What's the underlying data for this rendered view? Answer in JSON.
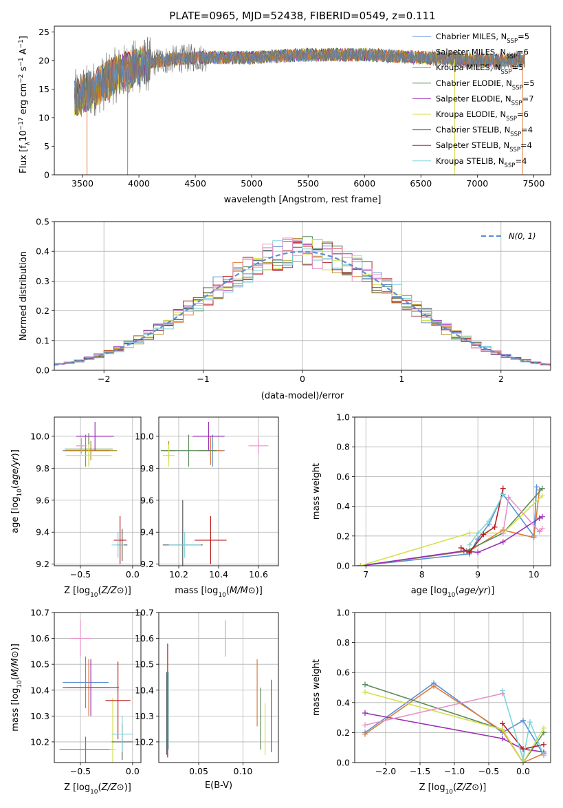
{
  "title": "PLATE=0965, MJD=52438, FIBERID=0549, z=0.111",
  "legend": [
    {
      "name": "Chabrier MILES, N",
      "n": "5",
      "color": "#5a8fd4"
    },
    {
      "name": "Salpeter MILES, N",
      "n": "6",
      "color": "#e07b39"
    },
    {
      "name": "Kroupa MILES, N",
      "n": "5",
      "color": "#b08b20"
    },
    {
      "name": "Chabrier ELODIE, N",
      "n": "5",
      "color": "#5a8a5a"
    },
    {
      "name": "Salpeter ELODIE, N",
      "n": "7",
      "color": "#9b30b5"
    },
    {
      "name": "Kroupa ELODIE, N",
      "n": "6",
      "color": "#d4e04a"
    },
    {
      "name": "Chabrier STELIB, N",
      "n": "4",
      "color": "#555555"
    },
    {
      "name": "Salpeter STELIB, N",
      "n": "4",
      "color": "#b81e1e"
    },
    {
      "name": "Kroupa STELIB, N",
      "n": "4",
      "color": "#7fd4dc"
    }
  ],
  "legend_sub": "SSP",
  "gauss_label": "N(0, 1)",
  "axes": {
    "p1": {
      "xlabel": "wavelength [Angstrom, rest frame]",
      "ylabel_pre": "Flux [f",
      "ylabel_sub": "λ",
      "ylabel_post": "10",
      "ylabel_exp": "−17",
      "ylabel_tail": " erg cm",
      "ylabel_exp2": "−2",
      "ylabel_s": " s",
      "ylabel_exp3": "−1",
      "ylabel_A": " A",
      "ylabel_exp4": "−1",
      "ylabel_end": "]"
    },
    "p2": {
      "xlabel": "(data-model)/error",
      "ylabel": "Normed distribution"
    },
    "p3": {
      "xlabel": "Z [log10(Z/Z⊙)]",
      "ylabel": "age  [log10(age/yr)]"
    },
    "p4": {
      "xlabel": "mass [log10(M/M⊙)]"
    },
    "p5": {
      "xlabel": "age  [log10(age/yr)]",
      "ylabel": "mass weight"
    },
    "p6": {
      "xlabel": "Z [log10(Z/Z⊙)]",
      "ylabel": "mass [log10(M/M⊙)]"
    },
    "p7": {
      "xlabel": "E(B-V)"
    },
    "p8": {
      "xlabel": "Z [log10(Z/Z⊙)]",
      "ylabel": "mass weight"
    }
  },
  "chart_data": [
    {
      "type": "line",
      "id": "spectrum",
      "xlim": [
        3250,
        7650
      ],
      "ylim": [
        0,
        26
      ],
      "xticks": [
        3500,
        4000,
        4500,
        5000,
        5500,
        6000,
        6500,
        7000,
        7500
      ],
      "yticks": [
        0,
        5,
        10,
        15,
        20,
        25
      ],
      "x_start": 3430,
      "x_end": 7420,
      "continuum": [
        [
          3430,
          13.5
        ],
        [
          3600,
          15
        ],
        [
          3800,
          17.5
        ],
        [
          4000,
          19
        ],
        [
          4200,
          20
        ],
        [
          4500,
          20.5
        ],
        [
          5000,
          20.5
        ],
        [
          5500,
          21
        ],
        [
          6000,
          21
        ],
        [
          6500,
          20.5
        ],
        [
          7000,
          20
        ],
        [
          7400,
          20
        ]
      ]
    },
    {
      "type": "line",
      "id": "residuals",
      "xlim": [
        -2.5,
        2.5
      ],
      "ylim": [
        0,
        0.5
      ],
      "xticks": [
        -2,
        -1,
        0,
        1,
        2
      ],
      "yticks": [
        0.0,
        0.1,
        0.2,
        0.3,
        0.4,
        0.5
      ]
    },
    {
      "type": "scatter",
      "id": "age_vs_Z",
      "xlim": [
        -0.75,
        0.08
      ],
      "ylim": [
        9.19,
        10.12
      ],
      "xticks": [
        -0.5,
        0.0
      ],
      "yticks": [
        9.2,
        9.4,
        9.6,
        9.8,
        10.0
      ],
      "points": [
        {
          "x": -0.45,
          "y": 9.91,
          "xerr": 0.22,
          "yerr": 0.1,
          "color": "#5a8fd4"
        },
        {
          "x": -0.42,
          "y": 9.91,
          "xerr": 0.2,
          "yerr": 0.09,
          "color": "#e07b39"
        },
        {
          "x": -0.4,
          "y": 9.91,
          "xerr": 0.25,
          "yerr": 0.06,
          "color": "#b08b20"
        },
        {
          "x": -0.42,
          "y": 9.92,
          "xerr": 0.23,
          "yerr": 0.1,
          "color": "#5a8a5a"
        },
        {
          "x": -0.36,
          "y": 10.0,
          "xerr": 0.18,
          "yerr": 0.09,
          "color": "#9b30b5"
        },
        {
          "x": -0.42,
          "y": 9.88,
          "xerr": 0.22,
          "yerr": 0.07,
          "color": "#d4e04a"
        },
        {
          "x": -0.1,
          "y": 9.32,
          "xerr": 0.05,
          "yerr": 0.1,
          "color": "#555555"
        },
        {
          "x": -0.12,
          "y": 9.35,
          "xerr": 0.06,
          "yerr": 0.15,
          "color": "#b81e1e"
        },
        {
          "x": -0.14,
          "y": 9.32,
          "xerr": 0.06,
          "yerr": 0.08,
          "color": "#7fd4dc"
        },
        {
          "x": -0.49,
          "y": 9.94,
          "xerr": 0.05,
          "yerr": 0.05,
          "color": "#e891c8"
        }
      ]
    },
    {
      "type": "scatter",
      "id": "age_vs_mass",
      "xlim": [
        10.1,
        10.7
      ],
      "ylim": [
        9.19,
        10.12
      ],
      "xticks": [
        10.2,
        10.4,
        10.6
      ],
      "yticks": [
        9.2,
        9.4,
        9.6,
        9.8,
        10.0
      ],
      "points": [
        {
          "x": 10.37,
          "y": 9.91,
          "xerr": 0.06,
          "yerr": 0.1,
          "color": "#5a8fd4"
        },
        {
          "x": 10.36,
          "y": 9.91,
          "xerr": 0.06,
          "yerr": 0.09,
          "color": "#e07b39"
        },
        {
          "x": 10.15,
          "y": 9.91,
          "xerr": 0.03,
          "yerr": 0.06,
          "color": "#b08b20"
        },
        {
          "x": 10.25,
          "y": 9.91,
          "xerr": 0.14,
          "yerr": 0.1,
          "color": "#5a8a5a"
        },
        {
          "x": 10.35,
          "y": 10.0,
          "xerr": 0.08,
          "yerr": 0.09,
          "color": "#9b30b5"
        },
        {
          "x": 10.15,
          "y": 9.88,
          "xerr": 0.03,
          "yerr": 0.07,
          "color": "#d4e04a"
        },
        {
          "x": 10.22,
          "y": 9.32,
          "xerr": 0.1,
          "yerr": 0.28,
          "color": "#555555"
        },
        {
          "x": 10.36,
          "y": 9.35,
          "xerr": 0.08,
          "yerr": 0.15,
          "color": "#b81e1e"
        },
        {
          "x": 10.23,
          "y": 9.32,
          "xerr": 0.08,
          "yerr": 0.08,
          "color": "#7fd4dc"
        },
        {
          "x": 10.6,
          "y": 9.94,
          "xerr": 0.05,
          "yerr": 0.05,
          "color": "#e891c8"
        }
      ]
    },
    {
      "type": "line",
      "id": "massweight_vs_age",
      "xlim": [
        6.8,
        10.3
      ],
      "ylim": [
        0,
        1.0
      ],
      "xticks": [
        7,
        8,
        9,
        10
      ],
      "yticks": [
        0.0,
        0.2,
        0.4,
        0.6,
        0.8,
        1.0
      ],
      "series": [
        {
          "color": "#5a8fd4",
          "x": [
            6.9,
            8.85,
            9.0,
            9.2,
            9.45,
            10.0,
            10.05
          ],
          "y": [
            0,
            0.08,
            0.18,
            0.28,
            0.48,
            0.2,
            0.53
          ]
        },
        {
          "color": "#e07b39",
          "x": [
            6.9,
            8.85,
            9.45,
            10.0,
            10.1
          ],
          "y": [
            0,
            0.1,
            0.24,
            0.19,
            0.51
          ]
        },
        {
          "color": "#5a8a5a",
          "x": [
            6.9,
            8.8,
            9.45,
            10.15
          ],
          "y": [
            0,
            0.1,
            0.22,
            0.52
          ]
        },
        {
          "color": "#9b30b5",
          "x": [
            6.9,
            8.75,
            9.0,
            9.45,
            10.1,
            10.15
          ],
          "y": [
            0,
            0.1,
            0.09,
            0.16,
            0.32,
            0.33
          ]
        },
        {
          "color": "#d4e04a",
          "x": [
            6.9,
            8.85,
            9.0,
            9.45,
            10.15
          ],
          "y": [
            0,
            0.22,
            0.22,
            0.22,
            0.47
          ]
        },
        {
          "color": "#b81e1e",
          "x": [
            8.7,
            8.85,
            9.1,
            9.3,
            9.45
          ],
          "y": [
            0.12,
            0.09,
            0.21,
            0.26,
            0.52
          ]
        },
        {
          "color": "#7fd4dc",
          "x": [
            8.85,
            9.0,
            9.2,
            9.45
          ],
          "y": [
            0.14,
            0.22,
            0.3,
            0.48
          ]
        },
        {
          "color": "#e891c8",
          "x": [
            9.45,
            9.55,
            10.1,
            10.15
          ],
          "y": [
            0.22,
            0.46,
            0.23,
            0.25
          ]
        }
      ]
    },
    {
      "type": "scatter",
      "id": "mass_vs_Z",
      "xlim": [
        -0.75,
        0.08
      ],
      "ylim": [
        10.12,
        10.7
      ],
      "xticks": [
        -0.5,
        0.0
      ],
      "yticks": [
        10.2,
        10.3,
        10.4,
        10.5,
        10.6,
        10.7
      ],
      "points": [
        {
          "x": -0.45,
          "y": 10.43,
          "xerr": 0.22,
          "yerr": 0.1,
          "color": "#5a8fd4"
        },
        {
          "x": -0.42,
          "y": 10.41,
          "xerr": 0.2,
          "yerr": 0.11,
          "color": "#e07b39"
        },
        {
          "x": -0.45,
          "y": 10.17,
          "xerr": 0.25,
          "yerr": 0.05,
          "color": "#5a8a5a"
        },
        {
          "x": -0.4,
          "y": 10.41,
          "xerr": 0.27,
          "yerr": 0.11,
          "color": "#9b30b5"
        },
        {
          "x": -0.19,
          "y": 10.17,
          "xerr": 0.03,
          "yerr": 0.2,
          "color": "#d4e04a"
        },
        {
          "x": -0.1,
          "y": 10.2,
          "xerr": 0.1,
          "yerr": 0.07,
          "color": "#555555"
        },
        {
          "x": -0.14,
          "y": 10.36,
          "xerr": 0.12,
          "yerr": 0.15,
          "color": "#b81e1e"
        },
        {
          "x": -0.1,
          "y": 10.23,
          "xerr": 0.1,
          "yerr": 0.07,
          "color": "#7fd4dc"
        },
        {
          "x": -0.5,
          "y": 10.6,
          "xerr": 0.1,
          "yerr": 0.07,
          "color": "#e891c8"
        }
      ]
    },
    {
      "type": "scatter",
      "id": "mass_vs_EBV",
      "xlim": [
        0.005,
        0.14
      ],
      "ylim": [
        10.12,
        10.7
      ],
      "xticks": [
        0.05,
        0.1
      ],
      "yticks": [
        10.2,
        10.3,
        10.4,
        10.5,
        10.6,
        10.7
      ],
      "points": [
        {
          "x": 0.015,
          "y": 10.36,
          "xerr": 0,
          "yerr": 0.22,
          "color": "#b81e1e"
        },
        {
          "x": 0.014,
          "y": 10.31,
          "xerr": 0,
          "yerr": 0.16,
          "color": "#555555"
        },
        {
          "x": 0.016,
          "y": 10.32,
          "xerr": 0,
          "yerr": 0.15,
          "color": "#7fd4dc"
        },
        {
          "x": 0.08,
          "y": 10.6,
          "xerr": 0,
          "yerr": 0.07,
          "color": "#e891c8"
        },
        {
          "x": 0.116,
          "y": 10.39,
          "xerr": 0,
          "yerr": 0.13,
          "color": "#e07b39"
        },
        {
          "x": 0.12,
          "y": 10.29,
          "xerr": 0,
          "yerr": 0.12,
          "color": "#5a8a5a"
        },
        {
          "x": 0.125,
          "y": 10.25,
          "xerr": 0,
          "yerr": 0.1,
          "color": "#d4e04a"
        },
        {
          "x": 0.132,
          "y": 10.3,
          "xerr": 0,
          "yerr": 0.14,
          "color": "#9b30b5"
        }
      ]
    },
    {
      "type": "line",
      "id": "massweight_vs_Z",
      "xlim": [
        -2.45,
        0.4
      ],
      "ylim": [
        0,
        1.0
      ],
      "xticks": [
        -2.0,
        -1.5,
        -1.0,
        -0.5,
        0.0
      ],
      "yticks": [
        0.0,
        0.2,
        0.4,
        0.6,
        0.8,
        1.0
      ],
      "series": [
        {
          "color": "#5a8fd4",
          "x": [
            -2.3,
            -1.3,
            -0.3,
            0.0,
            0.3
          ],
          "y": [
            0.2,
            0.53,
            0.2,
            0.28,
            0.05
          ]
        },
        {
          "color": "#e07b39",
          "x": [
            -2.3,
            -1.3,
            -0.3,
            0.0,
            0.3
          ],
          "y": [
            0.19,
            0.51,
            0.21,
            0.0,
            0.06
          ]
        },
        {
          "color": "#5a8a5a",
          "x": [
            -2.3,
            -0.3,
            0.0,
            0.3
          ],
          "y": [
            0.52,
            0.22,
            0.0,
            0.2
          ]
        },
        {
          "color": "#9b30b5",
          "x": [
            -2.3,
            -0.3,
            0.0,
            0.3
          ],
          "y": [
            0.33,
            0.16,
            0.09,
            0.07
          ]
        },
        {
          "color": "#d4e04a",
          "x": [
            -2.3,
            -0.3,
            0.0,
            0.3
          ],
          "y": [
            0.47,
            0.22,
            0.0,
            0.23
          ]
        },
        {
          "color": "#b81e1e",
          "x": [
            -0.3,
            0.0,
            0.3
          ],
          "y": [
            0.26,
            0.09,
            0.12
          ]
        },
        {
          "color": "#7fd4dc",
          "x": [
            -0.3,
            0.0,
            0.1,
            0.3
          ],
          "y": [
            0.48,
            0.02,
            0.27,
            0.05
          ]
        },
        {
          "color": "#e891c8",
          "x": [
            -2.3,
            -0.3
          ],
          "y": [
            0.25,
            0.46
          ]
        }
      ]
    }
  ]
}
